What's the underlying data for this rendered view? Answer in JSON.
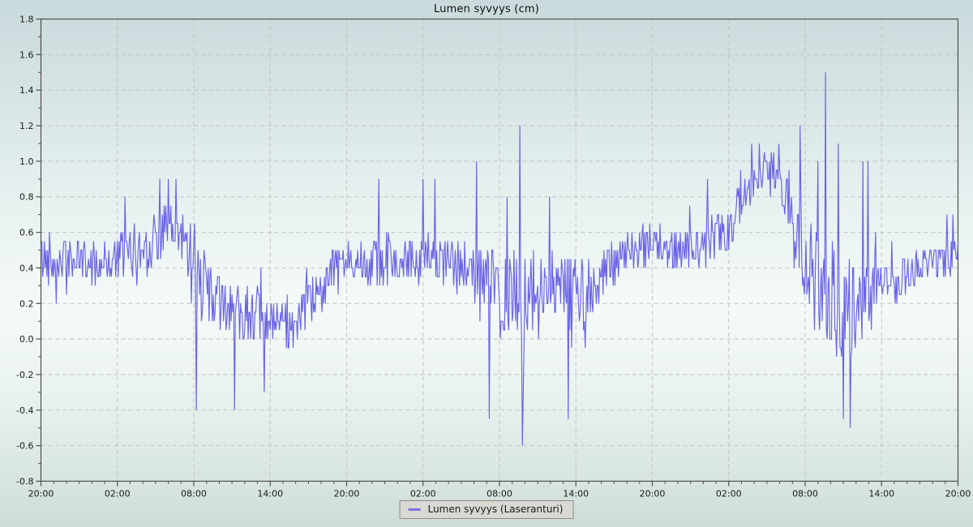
{
  "chart_data": {
    "type": "line",
    "title": "Lumen syvyys (cm)",
    "legend": {
      "label": "Lumen syvyys (Laseranturi)",
      "position": "bottom-center"
    },
    "series_color": "#6a63e6",
    "x_axis": {
      "range_hours": 72,
      "tick_interval_hours": 6,
      "minor_tick_hours": 1,
      "tick_labels": [
        "20:00",
        "02:00",
        "08:00",
        "14:00",
        "20:00",
        "02:00",
        "08:00",
        "14:00",
        "20:00",
        "02:00",
        "08:00",
        "14:00",
        "20:00"
      ]
    },
    "y_axis": {
      "min": -0.8,
      "max": 1.8,
      "tick_step": 0.2,
      "minor_step": 0.1,
      "label_decimals": 1
    },
    "grid": {
      "dashed": true,
      "color": "#c2c2c2",
      "border_color": "#4d4d4d"
    },
    "samples_per_hour": 15,
    "quantize_step": 0.05,
    "seed": 42,
    "trend_hourly": [
      0.45,
      0.44,
      0.46,
      0.44,
      0.43,
      0.44,
      0.46,
      0.48,
      0.52,
      0.58,
      0.62,
      0.58,
      0.5,
      0.28,
      0.2,
      0.18,
      0.16,
      0.13,
      0.08,
      0.06,
      0.08,
      0.16,
      0.3,
      0.4,
      0.44,
      0.45,
      0.44,
      0.45,
      0.44,
      0.45,
      0.46,
      0.44,
      0.42,
      0.4,
      0.38,
      0.32,
      0.25,
      0.22,
      0.2,
      0.28,
      0.3,
      0.28,
      0.26,
      0.3,
      0.36,
      0.42,
      0.48,
      0.52,
      0.54,
      0.52,
      0.5,
      0.52,
      0.55,
      0.58,
      0.62,
      0.75,
      0.88,
      0.95,
      0.92,
      0.72,
      0.45,
      0.3,
      0.22,
      0.18,
      0.2,
      0.24,
      0.28,
      0.32,
      0.38,
      0.42,
      0.42,
      0.44,
      0.46
    ],
    "noise_amp_hourly": [
      0.13,
      0.13,
      0.13,
      0.12,
      0.12,
      0.13,
      0.14,
      0.15,
      0.15,
      0.16,
      0.15,
      0.16,
      0.2,
      0.2,
      0.18,
      0.16,
      0.17,
      0.16,
      0.14,
      0.13,
      0.13,
      0.14,
      0.14,
      0.13,
      0.12,
      0.12,
      0.13,
      0.13,
      0.12,
      0.13,
      0.14,
      0.14,
      0.15,
      0.16,
      0.18,
      0.22,
      0.25,
      0.28,
      0.3,
      0.22,
      0.18,
      0.2,
      0.22,
      0.18,
      0.15,
      0.13,
      0.12,
      0.12,
      0.1,
      0.1,
      0.11,
      0.12,
      0.13,
      0.14,
      0.15,
      0.13,
      0.1,
      0.08,
      0.12,
      0.2,
      0.3,
      0.3,
      0.32,
      0.3,
      0.26,
      0.2,
      0.15,
      0.13,
      0.1,
      0.1,
      0.1,
      0.11,
      0.12
    ],
    "spikes": [
      [
        6.6,
        0.8
      ],
      [
        9.3,
        0.9
      ],
      [
        10.0,
        0.9
      ],
      [
        10.6,
        0.9
      ],
      [
        12.2,
        -0.4
      ],
      [
        15.2,
        -0.4
      ],
      [
        17.5,
        -0.3
      ],
      [
        26.5,
        0.9
      ],
      [
        30.0,
        0.9
      ],
      [
        30.9,
        0.9
      ],
      [
        34.2,
        1.0
      ],
      [
        35.2,
        -0.45
      ],
      [
        36.6,
        0.8
      ],
      [
        37.6,
        1.2
      ],
      [
        37.8,
        -0.6
      ],
      [
        39.9,
        0.8
      ],
      [
        41.4,
        -0.45
      ],
      [
        52.3,
        0.9
      ],
      [
        55.8,
        1.1
      ],
      [
        56.4,
        1.1
      ],
      [
        57.9,
        1.1
      ],
      [
        59.6,
        1.2
      ],
      [
        61.0,
        1.0
      ],
      [
        61.6,
        1.5
      ],
      [
        62.6,
        1.1
      ],
      [
        63.0,
        -0.45
      ],
      [
        63.5,
        -0.5
      ],
      [
        64.5,
        1.0
      ],
      [
        64.9,
        1.0
      ],
      [
        71.1,
        0.7
      ],
      [
        71.6,
        0.7
      ]
    ]
  },
  "colors": {
    "background_top": "#c9dadc",
    "background_middle": "#f4faf8",
    "background_bottom": "#cfddd8",
    "legend_background": "#d9d9d3",
    "legend_border": "#8a8a8a",
    "tick_text": "#1a1a1a"
  }
}
